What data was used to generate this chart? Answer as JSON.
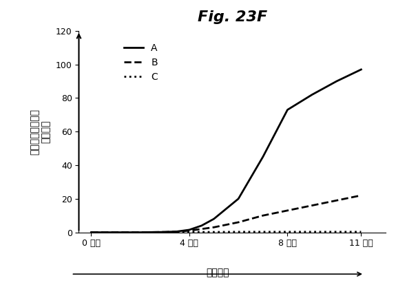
{
  "title": "Fig. 23F",
  "ylabel": "生存細胞の全数の\n増殖倍数",
  "xlabel": "培養日数",
  "xlim": [
    -0.5,
    12
  ],
  "ylim": [
    0,
    120
  ],
  "yticks": [
    0,
    20,
    40,
    60,
    80,
    100,
    120
  ],
  "xtick_positions": [
    0,
    4,
    8,
    11
  ],
  "xtick_labels": [
    "0 日目",
    "4 日目",
    "8 日目",
    "11 日目"
  ],
  "series": [
    {
      "label": "A",
      "x": [
        0,
        1,
        2,
        3,
        3.5,
        4,
        4.5,
        5,
        6,
        7,
        8,
        9,
        10,
        11
      ],
      "y": [
        0,
        0,
        0,
        0.2,
        0.5,
        1.5,
        4,
        8,
        20,
        45,
        73,
        82,
        90,
        97
      ],
      "color": "#000000",
      "linestyle": "solid",
      "linewidth": 2.0
    },
    {
      "label": "B",
      "x": [
        0,
        1,
        2,
        3,
        3.5,
        4,
        5,
        6,
        7,
        8,
        9,
        10,
        11
      ],
      "y": [
        0,
        0,
        0,
        0.2,
        0.4,
        1.0,
        3,
        6,
        10,
        13,
        16,
        19,
        22
      ],
      "color": "#000000",
      "linestyle": "dashed",
      "linewidth": 2.0
    },
    {
      "label": "C",
      "x": [
        0,
        1,
        2,
        3,
        4,
        5,
        6,
        7,
        8,
        9,
        10,
        11
      ],
      "y": [
        0,
        0,
        0,
        0.1,
        0.2,
        0.2,
        0.3,
        0.3,
        0.3,
        0.3,
        0.3,
        0.3
      ],
      "color": "#000000",
      "linestyle": "dotted",
      "linewidth": 2.0
    }
  ],
  "background_color": "#ffffff",
  "title_fontsize": 16,
  "axis_label_fontsize": 10,
  "tick_fontsize": 9,
  "legend_fontsize": 10
}
